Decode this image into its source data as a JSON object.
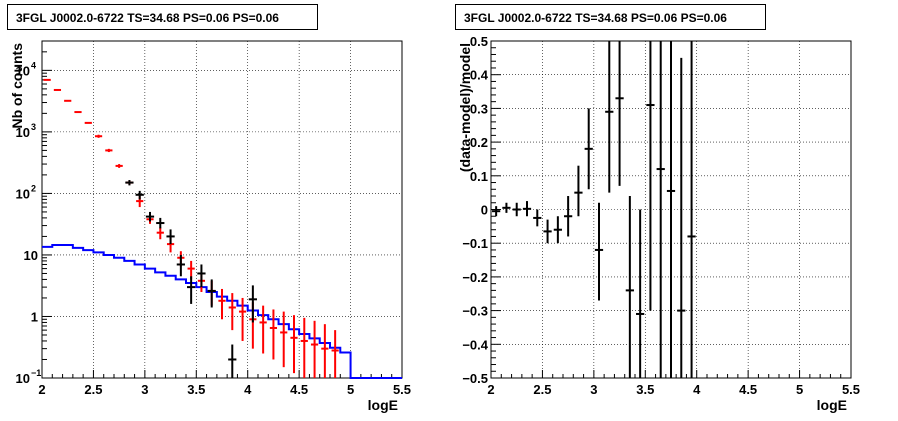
{
  "chart_data": [
    {
      "type": "histogram-log",
      "title": "3FGL J0002.0-6722 TS=34.68 PS=0.06 PS=0.06",
      "xlabel": "logE",
      "ylabel": "Nb of counts",
      "xlim": [
        2,
        5.5
      ],
      "ylim": [
        0.1,
        30000
      ],
      "log_y": true,
      "grid": true,
      "x_ticks": [
        "2",
        "2.5",
        "3",
        "3.5",
        "4",
        "4.5",
        "5",
        "5.5"
      ],
      "y_ticks": [
        {
          "value": 0.1,
          "label": "10",
          "exp": "−1"
        },
        {
          "value": 1,
          "label": "1",
          "exp": ""
        },
        {
          "value": 10,
          "label": "10",
          "exp": ""
        },
        {
          "value": 100,
          "label": "10",
          "exp": "2"
        },
        {
          "value": 1000,
          "label": "10",
          "exp": "3"
        },
        {
          "value": 10000,
          "label": "10",
          "exp": "4"
        }
      ],
      "colors": {
        "data": "#000000",
        "model": "#ff0000",
        "background": "#0000ff"
      },
      "series": [
        {
          "role": "data",
          "points": [
            {
              "x": 2.85,
              "y": 150,
              "lo": 135,
              "hi": 165
            },
            {
              "x": 2.95,
              "y": 95,
              "lo": 80,
              "hi": 110
            },
            {
              "x": 3.05,
              "y": 42,
              "lo": 35,
              "hi": 50
            },
            {
              "x": 3.15,
              "y": 33,
              "lo": 27,
              "hi": 40
            },
            {
              "x": 3.25,
              "y": 20,
              "lo": 15,
              "hi": 26
            },
            {
              "x": 3.35,
              "y": 7,
              "lo": 4.5,
              "hi": 10
            },
            {
              "x": 3.45,
              "y": 3,
              "lo": 1.6,
              "hi": 4.5
            },
            {
              "x": 3.55,
              "y": 5,
              "lo": 3,
              "hi": 7
            },
            {
              "x": 3.65,
              "y": 2.6,
              "lo": 1.4,
              "hi": 4
            },
            {
              "x": 3.85,
              "y": 0.2,
              "lo": 0.1,
              "hi": 0.35
            },
            {
              "x": 4.05,
              "y": 1.9,
              "lo": 0.8,
              "hi": 3.2
            }
          ]
        },
        {
          "role": "model",
          "points": [
            {
              "x": 2.05,
              "y": 7000
            },
            {
              "x": 2.15,
              "y": 4800
            },
            {
              "x": 2.25,
              "y": 3200
            },
            {
              "x": 2.35,
              "y": 2100
            },
            {
              "x": 2.45,
              "y": 1400
            },
            {
              "x": 2.55,
              "y": 850,
              "lo": 800,
              "hi": 900
            },
            {
              "x": 2.65,
              "y": 500,
              "lo": 470,
              "hi": 530
            },
            {
              "x": 2.75,
              "y": 280,
              "lo": 260,
              "hi": 300
            },
            {
              "x": 2.85,
              "y": 150,
              "lo": 138,
              "hi": 162
            },
            {
              "x": 2.95,
              "y": 75,
              "lo": 60,
              "hi": 90
            },
            {
              "x": 3.05,
              "y": 38,
              "lo": 32,
              "hi": 45
            },
            {
              "x": 3.15,
              "y": 23,
              "lo": 18,
              "hi": 28
            },
            {
              "x": 3.25,
              "y": 15,
              "lo": 11,
              "hi": 19
            },
            {
              "x": 3.35,
              "y": 9,
              "lo": 6.5,
              "hi": 11.5
            },
            {
              "x": 3.45,
              "y": 6,
              "lo": 4,
              "hi": 8
            },
            {
              "x": 3.55,
              "y": 3.8,
              "lo": 2.5,
              "hi": 5
            },
            {
              "x": 3.65,
              "y": 2.6,
              "lo": 1.5,
              "hi": 3.8
            },
            {
              "x": 3.75,
              "y": 1.8,
              "lo": 0.9,
              "hi": 2.8
            },
            {
              "x": 3.85,
              "y": 1.4,
              "lo": 0.6,
              "hi": 2.4
            },
            {
              "x": 3.95,
              "y": 1.2,
              "lo": 0.4,
              "hi": 2
            },
            {
              "x": 4.05,
              "y": 0.9,
              "lo": 0.3,
              "hi": 1.7
            },
            {
              "x": 4.15,
              "y": 0.8,
              "lo": 0.25,
              "hi": 1.5
            },
            {
              "x": 4.25,
              "y": 0.65,
              "lo": 0.2,
              "hi": 1.3
            },
            {
              "x": 4.35,
              "y": 0.55,
              "lo": 0.15,
              "hi": 1.2
            },
            {
              "x": 4.45,
              "y": 0.45,
              "lo": 0.12,
              "hi": 1.05
            },
            {
              "x": 4.55,
              "y": 0.4,
              "lo": 0.1,
              "hi": 0.95
            },
            {
              "x": 4.65,
              "y": 0.35,
              "lo": 0.1,
              "hi": 0.85
            },
            {
              "x": 4.75,
              "y": 0.3,
              "lo": 0.1,
              "hi": 0.75
            },
            {
              "x": 4.85,
              "y": 0.28,
              "lo": 0.1,
              "hi": 0.6
            }
          ]
        },
        {
          "role": "background",
          "edges": [
            2,
            2.1,
            2.2,
            2.3,
            2.4,
            2.5,
            2.6,
            2.7,
            2.8,
            2.9,
            3.0,
            3.1,
            3.2,
            3.3,
            3.4,
            3.5,
            3.6,
            3.7,
            3.8,
            3.9,
            4.0,
            4.1,
            4.2,
            4.3,
            4.4,
            4.5,
            4.6,
            4.7,
            4.8,
            4.9,
            5.0,
            5.1,
            5.2,
            5.3,
            5.4,
            5.5
          ],
          "values": [
            13.5,
            14.5,
            14.5,
            13,
            12,
            11,
            10,
            9,
            8,
            7,
            6,
            5.2,
            4.6,
            4,
            3.5,
            3,
            2.5,
            2.1,
            1.8,
            1.5,
            1.25,
            1.05,
            0.9,
            0.75,
            0.62,
            0.52,
            0.44,
            0.37,
            0.31,
            0.26,
            0.1,
            0.1,
            0.1,
            0.1,
            0.1
          ]
        }
      ]
    },
    {
      "type": "scatter-errorbars",
      "title": "3FGL J0002.0-6722 TS=34.68 PS=0.06 PS=0.06",
      "xlabel": "logE",
      "ylabel": "(data-model)/model",
      "xlim": [
        2,
        5.5
      ],
      "ylim": [
        -0.5,
        0.5
      ],
      "grid": true,
      "x_ticks": [
        "2",
        "2.5",
        "3",
        "3.5",
        "4",
        "4.5",
        "5",
        "5.5"
      ],
      "y_ticks": [
        "−0.5",
        "−0.4",
        "−0.3",
        "−0.2",
        "−0.1",
        "0",
        "0.1",
        "0.2",
        "0.3",
        "0.4",
        "0.5"
      ],
      "color": "#000000",
      "points": [
        {
          "x": 2.05,
          "y": -0.005,
          "lo": -0.02,
          "hi": 0.01
        },
        {
          "x": 2.15,
          "y": 0.005,
          "lo": -0.01,
          "hi": 0.02
        },
        {
          "x": 2.25,
          "y": 0.0,
          "lo": -0.02,
          "hi": 0.02
        },
        {
          "x": 2.35,
          "y": 0.002,
          "lo": -0.02,
          "hi": 0.025
        },
        {
          "x": 2.45,
          "y": -0.025,
          "lo": -0.05,
          "hi": 0.0
        },
        {
          "x": 2.55,
          "y": -0.065,
          "lo": -0.1,
          "hi": -0.03
        },
        {
          "x": 2.65,
          "y": -0.06,
          "lo": -0.1,
          "hi": -0.02
        },
        {
          "x": 2.75,
          "y": -0.02,
          "lo": -0.08,
          "hi": 0.04
        },
        {
          "x": 2.85,
          "y": 0.05,
          "lo": -0.02,
          "hi": 0.13
        },
        {
          "x": 2.95,
          "y": 0.18,
          "lo": 0.06,
          "hi": 0.3
        },
        {
          "x": 3.05,
          "y": -0.12,
          "lo": -0.27,
          "hi": 0.02
        },
        {
          "x": 3.15,
          "y": 0.29,
          "lo": 0.05,
          "hi": 0.5
        },
        {
          "x": 3.25,
          "y": 0.33,
          "lo": 0.07,
          "hi": 0.5
        },
        {
          "x": 3.35,
          "y": -0.24,
          "lo": -0.5,
          "hi": 0.04
        },
        {
          "x": 3.45,
          "y": -0.31,
          "lo": -0.5,
          "hi": 0.0
        },
        {
          "x": 3.55,
          "y": 0.31,
          "lo": -0.3,
          "hi": 0.5
        },
        {
          "x": 3.65,
          "y": 0.12,
          "lo": -0.5,
          "hi": 0.5
        },
        {
          "x": 3.75,
          "y": 0.055,
          "lo": -0.5,
          "hi": 0.5
        },
        {
          "x": 3.85,
          "y": -0.3,
          "lo": -0.5,
          "hi": 0.45
        },
        {
          "x": 3.95,
          "y": -0.08,
          "lo": -0.5,
          "hi": 0.5
        }
      ]
    }
  ]
}
